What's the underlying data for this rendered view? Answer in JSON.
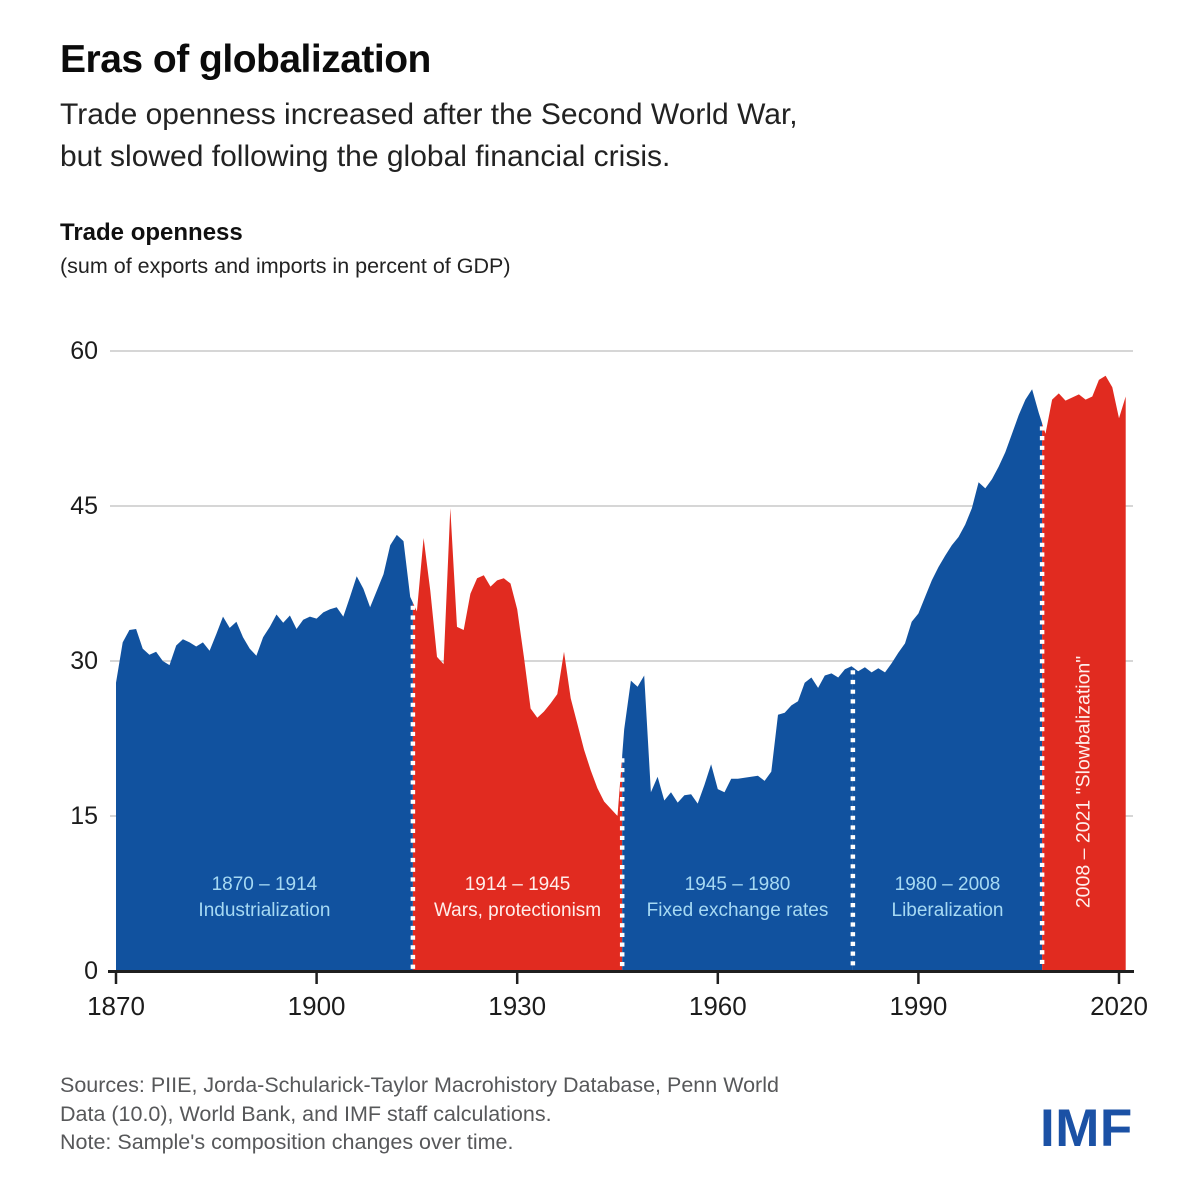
{
  "header": {
    "title": "Eras of globalization",
    "subtitle_line1": "Trade openness increased after the Second World War,",
    "subtitle_line2": "but slowed following the global financial crisis."
  },
  "footer": {
    "sources_line1": "Sources: PIIE, Jorda-Schularick-Taylor Macrohistory Database, Penn World",
    "sources_line2": "Data (10.0), World Bank, and IMF staff calculations.",
    "note": "Note: Sample's composition changes over time.",
    "logo": "IMF"
  },
  "colors": {
    "blue_area": "#11529f",
    "red_area": "#e12b20",
    "era_label_on_blue": "#a6d9f3",
    "era_label_on_red": "#ffeeeb",
    "gridline": "#c9c9c9",
    "axis": "#1f1f1f",
    "tick_label": "#1c1c1c",
    "source_text": "#57585a",
    "logo_blue": "#1b51a5",
    "separator_dots": "#ffffff"
  },
  "chart_data": {
    "type": "area",
    "title": "Trade openness",
    "subtitle": "(sum of exports and imports in percent of GDP)",
    "ylim": [
      0,
      60
    ],
    "yticks": [
      0,
      15,
      30,
      45,
      60
    ],
    "xticks": [
      1870,
      1900,
      1930,
      1960,
      1990,
      2020
    ],
    "grid": "horizontal-only",
    "legend": "none",
    "eras": [
      {
        "id": "industrialization",
        "label_line1": "1870 – 1914",
        "label_line2": "Industrialization",
        "start": 1870,
        "end": 1914.4,
        "color": "blue",
        "label_orientation": "horizontal"
      },
      {
        "id": "wars-protectionism",
        "label_line1": "1914 – 1945",
        "label_line2": "Wars, protectionism",
        "start": 1914.4,
        "end": 1945.7,
        "color": "red",
        "label_orientation": "horizontal"
      },
      {
        "id": "fixed-exchange-rates",
        "label_line1": "1945 – 1980",
        "label_line2": "Fixed exchange rates",
        "start": 1945.7,
        "end": 1980.2,
        "color": "blue",
        "label_orientation": "horizontal"
      },
      {
        "id": "liberalization",
        "label_line1": "1980 – 2008",
        "label_line2": "Liberalization",
        "start": 1980.2,
        "end": 2008.5,
        "color": "blue",
        "label_orientation": "horizontal"
      },
      {
        "id": "slowbalization",
        "label": "2008 – 2021 \"Slowbalization\"",
        "start": 2008.5,
        "end": 2021,
        "color": "red",
        "label_orientation": "vertical"
      }
    ],
    "series": {
      "name": "Trade openness (sum of exports and imports in percent of GDP)",
      "start_year": 1870,
      "end_year": 2021,
      "step": 1,
      "values": [
        27.9,
        31.8,
        33.0,
        33.1,
        31.2,
        30.6,
        30.9,
        30.0,
        29.6,
        31.5,
        32.1,
        31.8,
        31.4,
        31.8,
        31.0,
        32.6,
        34.3,
        33.2,
        33.8,
        32.3,
        31.2,
        30.5,
        32.3,
        33.3,
        34.5,
        33.7,
        34.4,
        33.1,
        34.0,
        34.3,
        34.1,
        34.7,
        35.0,
        35.2,
        34.3,
        36.2,
        38.2,
        37.0,
        35.2,
        36.8,
        38.4,
        41.2,
        42.2,
        41.6,
        36.2,
        34.8,
        41.9,
        36.8,
        30.4,
        29.7,
        44.8,
        33.3,
        33.0,
        36.5,
        38.0,
        38.3,
        37.2,
        37.8,
        38.0,
        37.5,
        35.0,
        30.4,
        25.4,
        24.5,
        25.1,
        25.9,
        26.8,
        30.9,
        26.4,
        23.9,
        21.4,
        19.4,
        17.7,
        16.4,
        15.7,
        15.0,
        23.4,
        28.1,
        27.5,
        28.6,
        17.3,
        18.8,
        16.5,
        17.3,
        16.3,
        17.0,
        17.1,
        16.2,
        18.0,
        20.0,
        17.6,
        17.3,
        18.6,
        18.6,
        18.7,
        18.8,
        18.9,
        18.4,
        19.3,
        24.8,
        25.0,
        25.7,
        26.1,
        27.9,
        28.4,
        27.4,
        28.6,
        28.8,
        28.4,
        29.2,
        29.5,
        29.0,
        29.4,
        28.9,
        29.3,
        28.9,
        29.8,
        30.8,
        31.7,
        33.8,
        34.6,
        36.2,
        37.8,
        39.1,
        40.2,
        41.2,
        42.0,
        43.2,
        44.8,
        47.3,
        46.7,
        47.6,
        48.8,
        50.2,
        52.0,
        53.8,
        55.3,
        56.3,
        54.0,
        52.0,
        55.3,
        55.9,
        55.2,
        55.5,
        55.8,
        55.3,
        55.6,
        57.2,
        57.6,
        56.5,
        53.5,
        55.6
      ]
    }
  }
}
